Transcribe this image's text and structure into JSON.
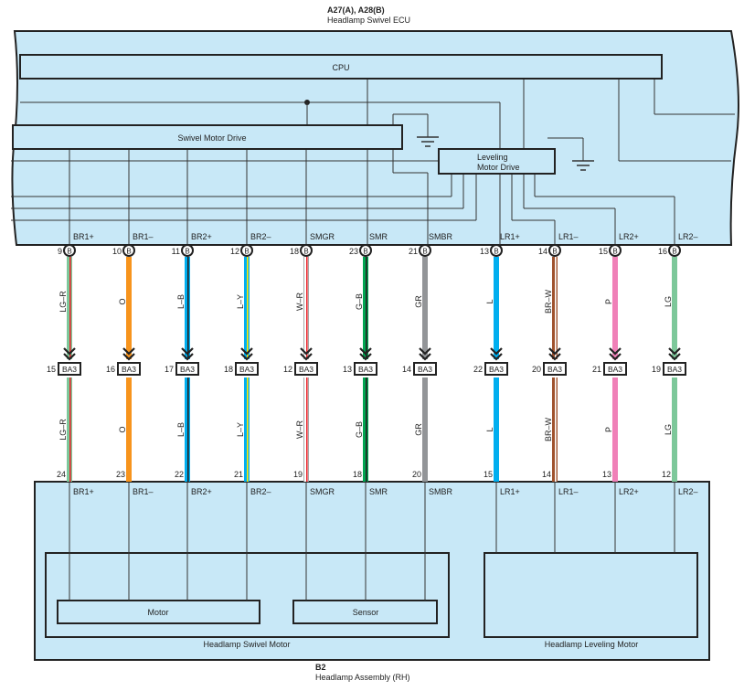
{
  "ecu": {
    "code": "A27(A), A28(B)",
    "name": "Headlamp Swivel ECU",
    "cpu_label": "CPU",
    "swivel_drive_label": "Swivel Motor Drive",
    "leveling_drive_label_1": "Leveling",
    "leveling_drive_label_2": "Motor Drive",
    "fill_color": "#c8e8f7"
  },
  "assembly": {
    "code": "B2",
    "name": "Headlamp Assembly (RH)",
    "swivel_motor_label": "Headlamp Swivel Motor",
    "motor_label": "Motor",
    "sensor_label": "Sensor",
    "leveling_motor_label": "Headlamp Leveling Motor"
  },
  "junction": {
    "name": "BA3"
  },
  "wires": [
    {
      "signal": "BR1+",
      "ecu_pin": "9",
      "ecu_conn": "B",
      "color_code": "LG–R",
      "color": "#7dc89a",
      "stripe": "#e8262d",
      "junction_pin": "15",
      "asm_pin": "24"
    },
    {
      "signal": "BR1–",
      "ecu_pin": "10",
      "ecu_conn": "B",
      "color_code": "O",
      "color": "#f7941d",
      "stripe": "",
      "junction_pin": "16",
      "asm_pin": "23"
    },
    {
      "signal": "BR2+",
      "ecu_pin": "11",
      "ecu_conn": "B",
      "color_code": "L–B",
      "color": "#00aeef",
      "stripe": "#222222",
      "junction_pin": "17",
      "asm_pin": "22"
    },
    {
      "signal": "BR2–",
      "ecu_pin": "12",
      "ecu_conn": "B",
      "color_code": "L–Y",
      "color": "#00aeef",
      "stripe": "#ffe600",
      "junction_pin": "18",
      "asm_pin": "21"
    },
    {
      "signal": "SMGR",
      "ecu_pin": "18",
      "ecu_conn": "B",
      "color_code": "W–R",
      "color": "#ffffff",
      "stripe": "#e8262d",
      "junction_pin": "12",
      "asm_pin": "19"
    },
    {
      "signal": "SMR",
      "ecu_pin": "23",
      "ecu_conn": "B",
      "color_code": "G–B",
      "color": "#00a651",
      "stripe": "#222222",
      "junction_pin": "13",
      "asm_pin": "18"
    },
    {
      "signal": "SMBR",
      "ecu_pin": "21",
      "ecu_conn": "B",
      "color_code": "GR",
      "color": "#939598",
      "stripe": "",
      "junction_pin": "14",
      "asm_pin": "20"
    },
    {
      "signal": "LR1+",
      "ecu_pin": "13",
      "ecu_conn": "B",
      "color_code": "L",
      "color": "#00aeef",
      "stripe": "",
      "junction_pin": "22",
      "asm_pin": "15"
    },
    {
      "signal": "LR1–",
      "ecu_pin": "14",
      "ecu_conn": "B",
      "color_code": "BR–W",
      "color": "#a0522d",
      "stripe": "#ffffff",
      "junction_pin": "20",
      "asm_pin": "14"
    },
    {
      "signal": "LR2+",
      "ecu_pin": "15",
      "ecu_conn": "B",
      "color_code": "P",
      "color": "#f080b8",
      "stripe": "",
      "junction_pin": "21",
      "asm_pin": "13"
    },
    {
      "signal": "LR2–",
      "ecu_pin": "16",
      "ecu_conn": "B",
      "color_code": "LG",
      "color": "#7dc89a",
      "stripe": "",
      "junction_pin": "19",
      "asm_pin": "12"
    }
  ]
}
